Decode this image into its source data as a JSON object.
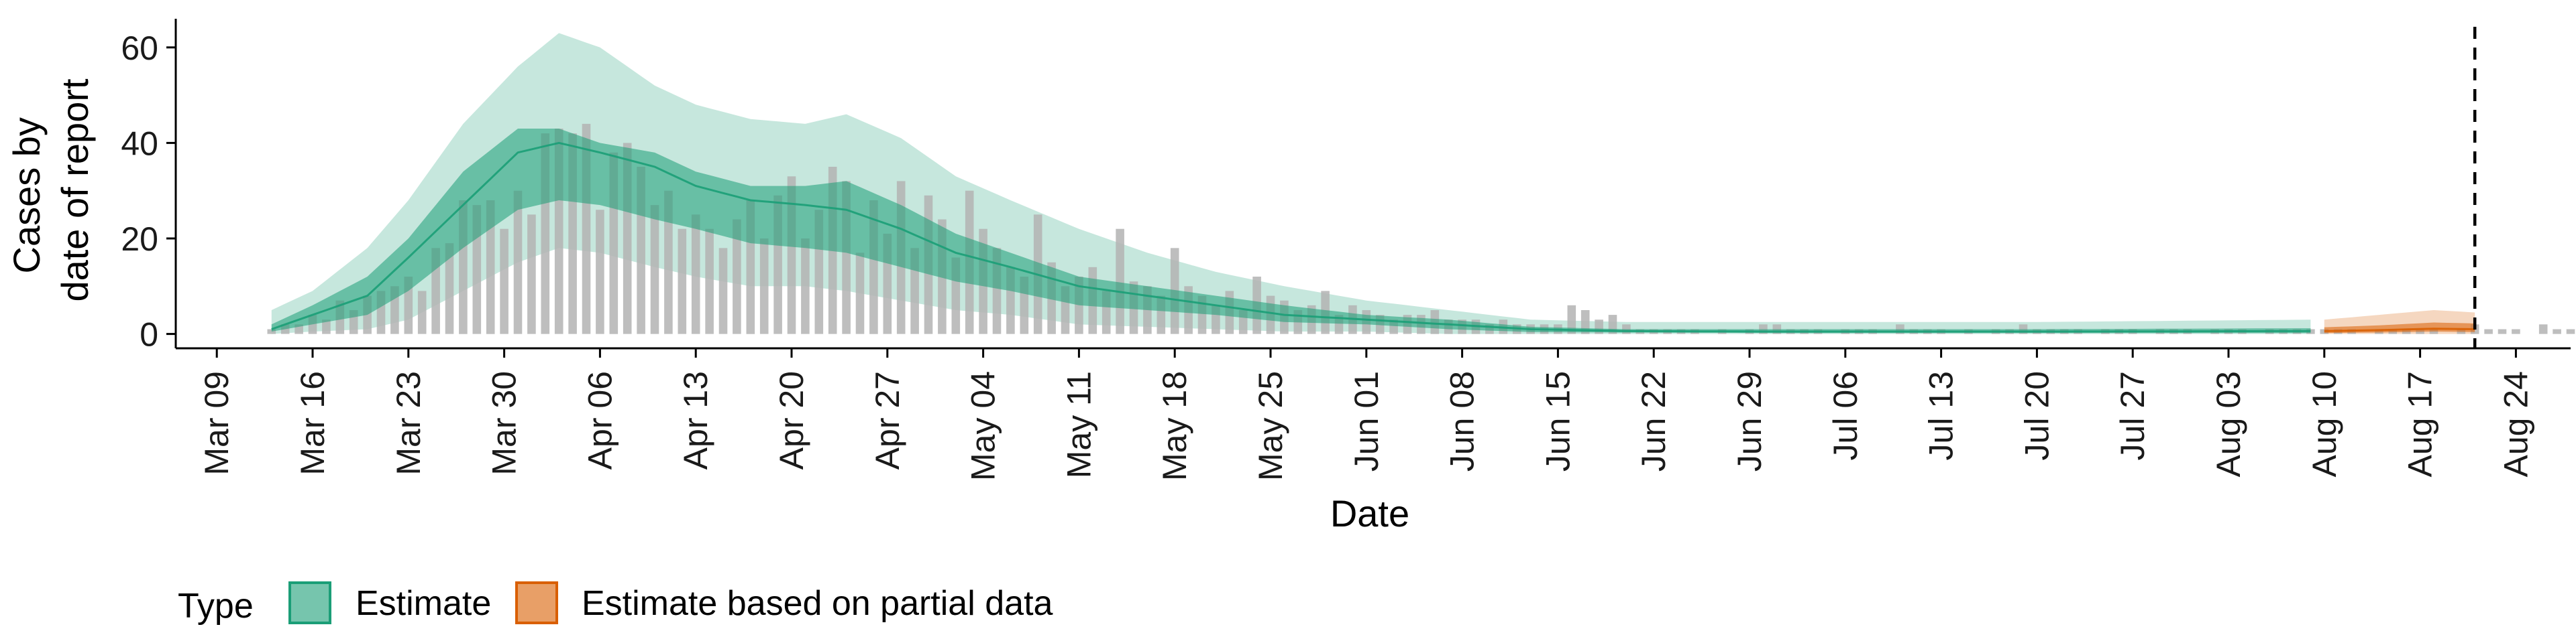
{
  "chart_data": {
    "type": "area",
    "xlabel": "Date",
    "ylabel_lines": [
      "Cases by",
      "date of report"
    ],
    "x_domain": [
      "2020-03-06",
      "2020-08-28"
    ],
    "ylim": [
      -3,
      66
    ],
    "y_ticks": [
      0,
      20,
      40,
      60
    ],
    "y_tick_labels": [
      "0",
      "20",
      "40",
      "60"
    ],
    "x_ticks": [
      "2020-03-09",
      "2020-03-16",
      "2020-03-23",
      "2020-03-30",
      "2020-04-06",
      "2020-04-13",
      "2020-04-20",
      "2020-04-27",
      "2020-05-04",
      "2020-05-11",
      "2020-05-18",
      "2020-05-25",
      "2020-06-01",
      "2020-06-08",
      "2020-06-15",
      "2020-06-22",
      "2020-06-29",
      "2020-07-06",
      "2020-07-13",
      "2020-07-20",
      "2020-07-27",
      "2020-08-03",
      "2020-08-10",
      "2020-08-17",
      "2020-08-24"
    ],
    "x_tick_labels": [
      "Mar 09",
      "Mar 16",
      "Mar 23",
      "Mar 30",
      "Apr 06",
      "Apr 13",
      "Apr 20",
      "Apr 27",
      "May 04",
      "May 11",
      "May 18",
      "May 25",
      "Jun 01",
      "Jun 08",
      "Jun 15",
      "Jun 22",
      "Jun 29",
      "Jul 06",
      "Jul 13",
      "Jul 20",
      "Jul 27",
      "Aug 03",
      "Aug 10",
      "Aug 17",
      "Aug 24"
    ],
    "vline_date": "2020-08-21",
    "grid": false,
    "legend_position": "bottom-left",
    "legend": {
      "title": "Type",
      "items": [
        {
          "label": "Estimate",
          "key": "estimate"
        },
        {
          "label": "Estimate based on partial data",
          "key": "partial"
        }
      ]
    },
    "colors": {
      "estimate_fill": "#1b9e77",
      "estimate_stroke": "#1b9e77",
      "partial_fill": "#d95f02",
      "partial_stroke": "#d95f02",
      "bar": "#b3b3b3",
      "axis": "#000000"
    },
    "series": [
      {
        "key": "estimate",
        "start": "2020-03-13",
        "end": "2020-08-09",
        "knots": [
          {
            "date": "2020-03-13",
            "median": 1,
            "lo50": 0.5,
            "hi50": 2,
            "lo90": 0,
            "hi90": 5
          },
          {
            "date": "2020-03-16",
            "median": 4,
            "lo50": 2,
            "hi50": 6,
            "lo90": 0.5,
            "hi90": 9
          },
          {
            "date": "2020-03-20",
            "median": 8,
            "lo50": 4,
            "hi50": 12,
            "lo90": 1,
            "hi90": 18
          },
          {
            "date": "2020-03-23",
            "median": 16,
            "lo50": 9,
            "hi50": 20,
            "lo90": 3,
            "hi90": 28
          },
          {
            "date": "2020-03-27",
            "median": 27,
            "lo50": 18,
            "hi50": 34,
            "lo90": 9,
            "hi90": 44
          },
          {
            "date": "2020-03-31",
            "median": 38,
            "lo50": 26,
            "hi50": 43,
            "lo90": 15,
            "hi90": 56
          },
          {
            "date": "2020-04-03",
            "median": 40,
            "lo50": 28,
            "hi50": 43,
            "lo90": 18,
            "hi90": 63
          },
          {
            "date": "2020-04-06",
            "median": 38,
            "lo50": 27,
            "hi50": 40,
            "lo90": 17,
            "hi90": 60
          },
          {
            "date": "2020-04-10",
            "median": 35,
            "lo50": 24,
            "hi50": 38,
            "lo90": 14,
            "hi90": 52
          },
          {
            "date": "2020-04-13",
            "median": 31,
            "lo50": 22,
            "hi50": 34,
            "lo90": 12,
            "hi90": 48
          },
          {
            "date": "2020-04-17",
            "median": 28,
            "lo50": 19,
            "hi50": 31,
            "lo90": 10,
            "hi90": 45
          },
          {
            "date": "2020-04-21",
            "median": 27,
            "lo50": 18,
            "hi50": 31,
            "lo90": 10,
            "hi90": 44
          },
          {
            "date": "2020-04-24",
            "median": 26,
            "lo50": 17,
            "hi50": 32,
            "lo90": 9,
            "hi90": 46
          },
          {
            "date": "2020-04-28",
            "median": 22,
            "lo50": 14,
            "hi50": 27,
            "lo90": 7,
            "hi90": 41
          },
          {
            "date": "2020-05-02",
            "median": 17,
            "lo50": 11,
            "hi50": 21,
            "lo90": 5,
            "hi90": 33
          },
          {
            "date": "2020-05-06",
            "median": 14,
            "lo50": 9,
            "hi50": 17,
            "lo90": 4,
            "hi90": 28
          },
          {
            "date": "2020-05-11",
            "median": 10,
            "lo50": 6,
            "hi50": 12,
            "lo90": 2,
            "hi90": 22
          },
          {
            "date": "2020-05-16",
            "median": 8,
            "lo50": 5,
            "hi50": 10,
            "lo90": 1.5,
            "hi90": 17
          },
          {
            "date": "2020-05-21",
            "median": 6,
            "lo50": 4,
            "hi50": 8,
            "lo90": 1,
            "hi90": 13
          },
          {
            "date": "2020-05-26",
            "median": 4,
            "lo50": 2.5,
            "hi50": 6,
            "lo90": 0.5,
            "hi90": 10
          },
          {
            "date": "2020-06-01",
            "median": 3,
            "lo50": 2,
            "hi50": 4,
            "lo90": 0.5,
            "hi90": 7
          },
          {
            "date": "2020-06-07",
            "median": 2,
            "lo50": 1,
            "hi50": 3,
            "lo90": 0,
            "hi90": 5
          },
          {
            "date": "2020-06-13",
            "median": 1,
            "lo50": 0.4,
            "hi50": 1.5,
            "lo90": 0,
            "hi90": 3
          },
          {
            "date": "2020-06-20",
            "median": 0.6,
            "lo50": 0.3,
            "hi50": 1,
            "lo90": 0,
            "hi90": 2.5
          },
          {
            "date": "2020-07-01",
            "median": 0.5,
            "lo50": 0.2,
            "hi50": 1,
            "lo90": 0,
            "hi90": 2.5
          },
          {
            "date": "2020-07-20",
            "median": 0.5,
            "lo50": 0.2,
            "hi50": 1,
            "lo90": 0,
            "hi90": 2.5
          },
          {
            "date": "2020-08-09",
            "median": 0.6,
            "lo50": 0.2,
            "hi50": 1.2,
            "lo90": 0,
            "hi90": 3
          }
        ]
      },
      {
        "key": "partial",
        "start": "2020-08-10",
        "end": "2020-08-21",
        "knots": [
          {
            "date": "2020-08-10",
            "median": 0.6,
            "lo50": 0.2,
            "hi50": 1.4,
            "lo90": 0,
            "hi90": 3
          },
          {
            "date": "2020-08-14",
            "median": 0.8,
            "lo50": 0.3,
            "hi50": 1.8,
            "lo90": 0,
            "hi90": 4
          },
          {
            "date": "2020-08-18",
            "median": 1.1,
            "lo50": 0.5,
            "hi50": 2.4,
            "lo90": 0,
            "hi90": 5
          },
          {
            "date": "2020-08-21",
            "median": 1,
            "lo50": 0.4,
            "hi50": 2.2,
            "lo90": 0,
            "hi90": 4.5
          }
        ]
      }
    ],
    "bars": {
      "start": "2020-03-13",
      "values": [
        1,
        2,
        2,
        4,
        3,
        7,
        5,
        8,
        9,
        10,
        12,
        9,
        18,
        19,
        28,
        27,
        28,
        22,
        30,
        25,
        42,
        43,
        42,
        44,
        26,
        38,
        40,
        35,
        27,
        30,
        22,
        25,
        22,
        18,
        24,
        28,
        20,
        29,
        33,
        20,
        26,
        35,
        32,
        17,
        28,
        21,
        32,
        18,
        29,
        24,
        16,
        30,
        22,
        18,
        14,
        12,
        25,
        15,
        10,
        12,
        14,
        9,
        22,
        11,
        10,
        8,
        18,
        10,
        8,
        6,
        9,
        5,
        12,
        8,
        7,
        5,
        6,
        9,
        4,
        6,
        5,
        4,
        3,
        4,
        4,
        5,
        3,
        3,
        3,
        2,
        3,
        2,
        2,
        2,
        2,
        6,
        5,
        3,
        4,
        2,
        1,
        1,
        1,
        1,
        1,
        0,
        1,
        0,
        1,
        2,
        2,
        1,
        1,
        1,
        0,
        1,
        1,
        1,
        0,
        2,
        1,
        1,
        1,
        0,
        1,
        0,
        1,
        1,
        2,
        1,
        1,
        1,
        1,
        0,
        1,
        1,
        1,
        0,
        1,
        1,
        1,
        0,
        1,
        1,
        1,
        0,
        1,
        1,
        1,
        1,
        1,
        1,
        1,
        0,
        1,
        1,
        1,
        1,
        1,
        0,
        1,
        2,
        1,
        1,
        1,
        0,
        2,
        1,
        1,
        1,
        1,
        2,
        1,
        1,
        1,
        2,
        4,
        2,
        1
      ]
    }
  }
}
